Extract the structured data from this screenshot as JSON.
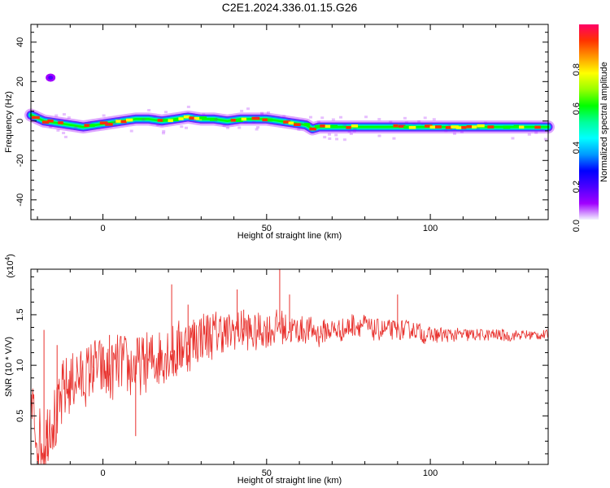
{
  "title": "C2E1.2024.336.01.15.G26",
  "chart_data": [
    {
      "type": "heatmap",
      "title": "C2E1.2024.336.01.15.G26",
      "xlabel": "Height of straight line (km)",
      "ylabel": "Frequency (Hz)",
      "xlim": [
        -22,
        136
      ],
      "ylim": [
        -50,
        49
      ],
      "xticks": [
        0,
        50,
        100
      ],
      "yticks": [
        -40,
        -20,
        0,
        20,
        40
      ],
      "ridge": {
        "x": [
          -22,
          -18,
          -14,
          -10,
          -6,
          -2,
          2,
          6,
          10,
          14,
          18,
          22,
          26,
          30,
          34,
          38,
          42,
          46,
          50,
          54,
          58,
          62,
          64,
          66,
          70,
          74,
          78,
          82,
          86,
          90,
          94,
          98,
          102,
          106,
          110,
          114,
          118,
          122,
          126,
          130,
          134
        ],
        "y": [
          3,
          0,
          -1,
          -2,
          -3,
          -2,
          -1,
          0,
          1,
          1,
          0,
          1,
          2,
          1,
          1,
          0,
          1,
          1,
          1,
          0,
          -1,
          -2,
          -4,
          -3,
          -3,
          -3,
          -3,
          -3,
          -3,
          -3,
          -3,
          -3,
          -3,
          -3,
          -3,
          -3,
          -3,
          -3,
          -3,
          -3,
          -3
        ]
      },
      "outlier_blob": {
        "x": -16,
        "y": 22
      },
      "colorbar": {
        "label": "Normalized spectral amplitude",
        "range": [
          0,
          1
        ],
        "ticks": [
          "0.0",
          "0.2",
          "0.4",
          "0.6",
          "0.8"
        ],
        "colors": [
          "#f2f2ff",
          "#a000ff",
          "#4c00ff",
          "#0000ff",
          "#0099ff",
          "#00ffff",
          "#00ff99",
          "#00ff00",
          "#99ff00",
          "#ffff00",
          "#ff9900",
          "#ff3300",
          "#ff0066"
        ]
      },
      "grid": false
    },
    {
      "type": "line",
      "xlabel": "Height of straight line (km)",
      "ylabel": "SNR (10 * V/V)",
      "multiplier_label": "(x10",
      "multiplier_exp": "4",
      "xlim": [
        -22,
        136
      ],
      "ylim": [
        0.02,
        1.95
      ],
      "xticks": [
        0,
        50,
        100
      ],
      "yticks": [
        0.5,
        1.0,
        1.5
      ],
      "color": "#e8302c",
      "series": [
        {
          "x": [
            -22,
            -20,
            -18,
            -16,
            -14,
            -12,
            -10,
            -8,
            -6,
            -4,
            -2,
            0,
            2,
            4,
            6,
            8,
            10,
            12,
            14,
            16,
            18,
            20,
            22,
            24,
            26,
            28,
            30,
            32,
            34,
            36,
            38,
            40,
            42,
            44,
            46,
            48,
            50,
            52,
            54,
            56,
            58,
            60,
            62,
            64,
            66,
            68,
            70,
            72,
            74,
            76,
            78,
            80,
            82,
            84,
            86,
            88,
            90,
            92,
            94,
            96,
            98,
            100,
            102,
            104,
            106,
            108,
            110,
            112,
            114,
            116,
            118,
            120,
            122,
            124,
            126,
            128,
            130,
            132,
            134,
            136
          ],
          "y": [
            0.6,
            0.3,
            0.2,
            0.5,
            0.45,
            0.75,
            0.8,
            0.9,
            0.85,
            0.95,
            1.0,
            0.95,
            0.9,
            1.0,
            1.05,
            0.95,
            1.0,
            1.0,
            1.05,
            1.05,
            1.1,
            1.15,
            1.1,
            1.2,
            1.2,
            1.25,
            1.3,
            1.3,
            1.3,
            1.35,
            1.3,
            1.35,
            1.35,
            1.35,
            1.3,
            1.35,
            1.35,
            1.35,
            1.4,
            1.35,
            1.35,
            1.35,
            1.35,
            1.35,
            1.3,
            1.35,
            1.35,
            1.35,
            1.35,
            1.4,
            1.4,
            1.4,
            1.35,
            1.35,
            1.35,
            1.35,
            1.35,
            1.35,
            1.35,
            1.35,
            1.3,
            1.3,
            1.3,
            1.3,
            1.3,
            1.3,
            1.3,
            1.3,
            1.3,
            1.3,
            1.3,
            1.3,
            1.3,
            1.28,
            1.3,
            1.3,
            1.3,
            1.3,
            1.3,
            1.3
          ],
          "noise": [
            0.35,
            0.35,
            0.3,
            0.35,
            0.35,
            0.35,
            0.3,
            0.3,
            0.3,
            0.3,
            0.3,
            0.3,
            0.3,
            0.3,
            0.3,
            0.3,
            0.3,
            0.3,
            0.3,
            0.3,
            0.3,
            0.3,
            0.3,
            0.3,
            0.28,
            0.28,
            0.25,
            0.25,
            0.25,
            0.22,
            0.22,
            0.2,
            0.2,
            0.2,
            0.2,
            0.18,
            0.18,
            0.18,
            0.18,
            0.16,
            0.15,
            0.14,
            0.14,
            0.13,
            0.13,
            0.12,
            0.12,
            0.12,
            0.12,
            0.12,
            0.12,
            0.11,
            0.11,
            0.11,
            0.11,
            0.1,
            0.1,
            0.1,
            0.09,
            0.09,
            0.09,
            0.08,
            0.08,
            0.08,
            0.07,
            0.07,
            0.07,
            0.07,
            0.06,
            0.06,
            0.06,
            0.06,
            0.06,
            0.05,
            0.05,
            0.05,
            0.05,
            0.05,
            0.05,
            0.05
          ]
        }
      ],
      "peaks": {
        "x": [
          -18,
          -17,
          -14,
          -3,
          2,
          10,
          21,
          26,
          41,
          43,
          54,
          57,
          90
        ],
        "y": [
          1.35,
          0.1,
          1.2,
          1.1,
          1.3,
          0.3,
          1.8,
          1.6,
          1.75,
          1.55,
          1.95,
          1.7,
          1.7
        ]
      },
      "grid": false
    }
  ]
}
